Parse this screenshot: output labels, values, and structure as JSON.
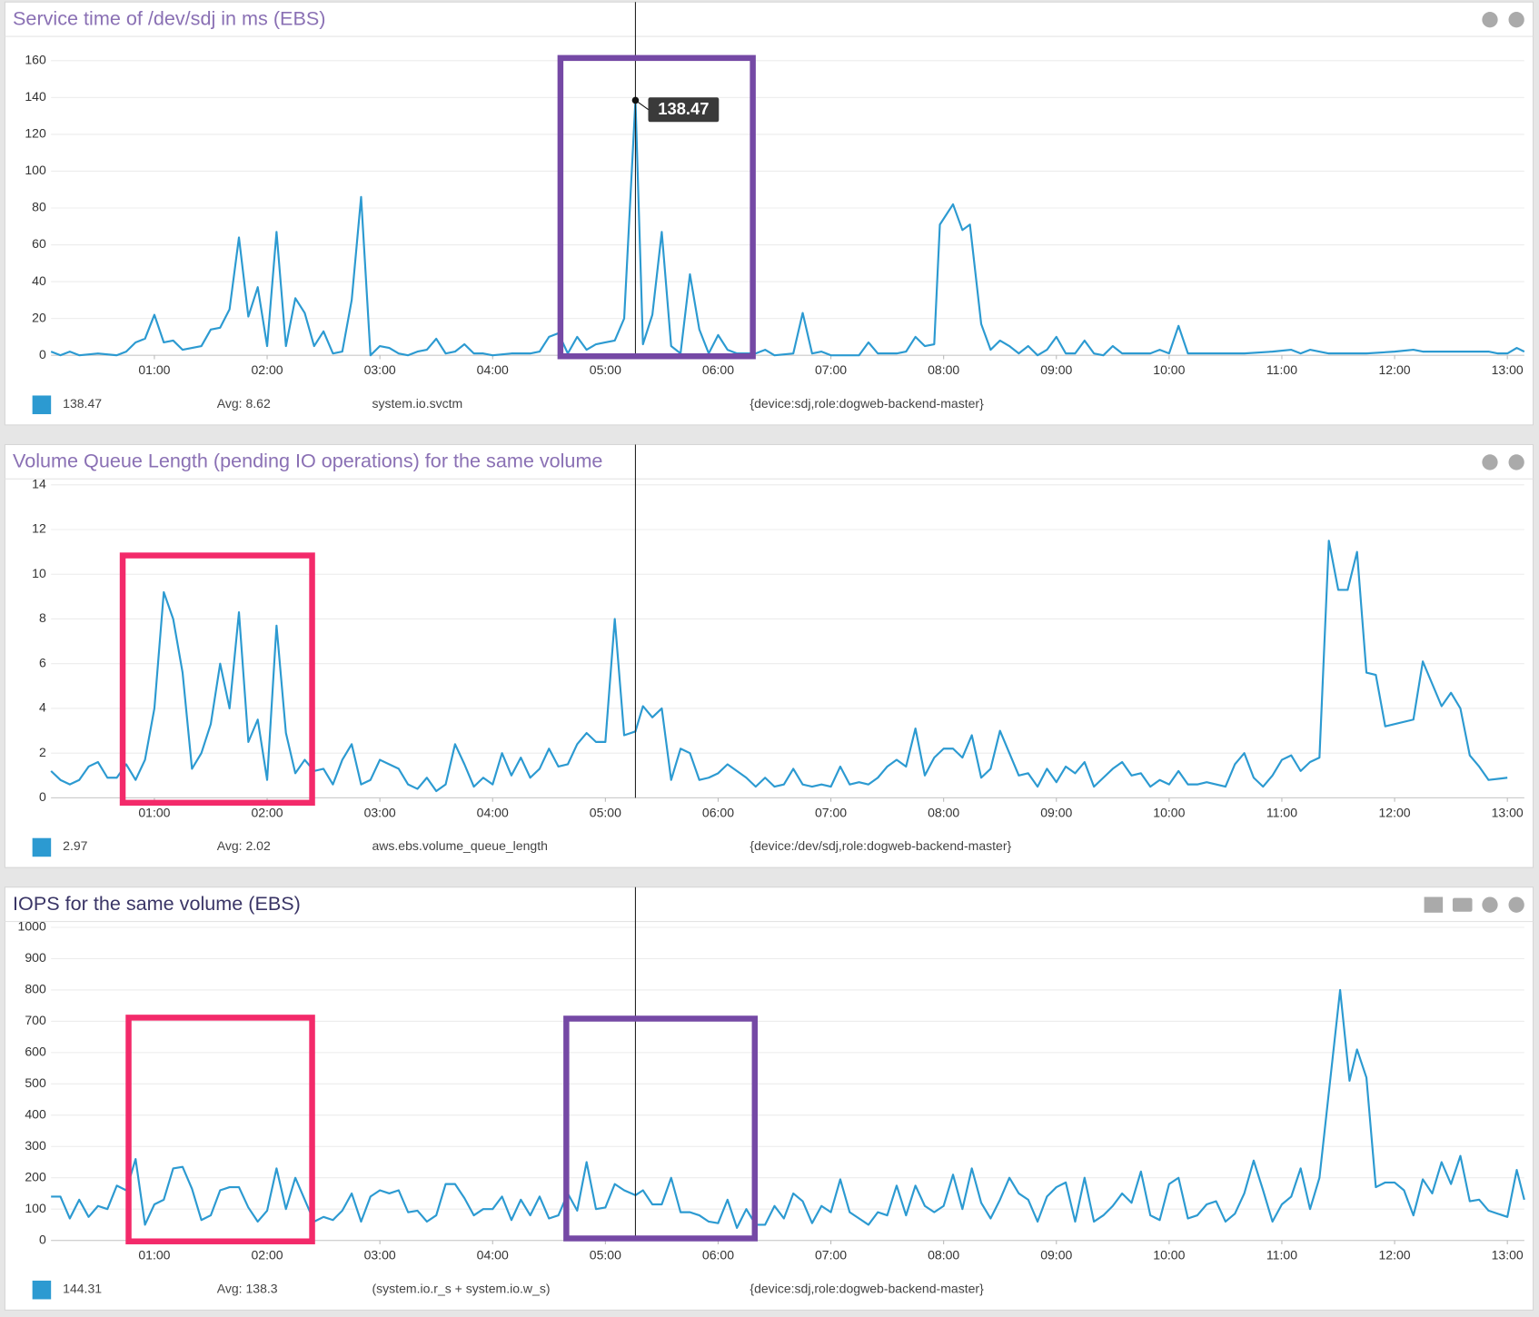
{
  "chart_data": [
    {
      "type": "line",
      "title": "Service time of /dev/sdj in ms (EBS)",
      "x": [
        "00:05",
        "00:10",
        "00:15",
        "00:20",
        "00:30",
        "00:40",
        "00:45",
        "00:50",
        "00:55",
        "01:00",
        "01:05",
        "01:10",
        "01:15",
        "01:20",
        "01:25",
        "01:30",
        "01:35",
        "01:40",
        "01:45",
        "01:50",
        "01:55",
        "02:00",
        "02:05",
        "02:10",
        "02:15",
        "02:20",
        "02:25",
        "02:30",
        "02:35",
        "02:40",
        "02:45",
        "02:50",
        "02:55",
        "03:00",
        "03:05",
        "03:10",
        "03:15",
        "03:20",
        "03:25",
        "03:30",
        "03:35",
        "03:40",
        "03:45",
        "03:50",
        "03:55",
        "04:00",
        "04:10",
        "04:20",
        "04:25",
        "04:30",
        "04:35",
        "04:40",
        "04:45",
        "04:50",
        "04:55",
        "05:00",
        "05:05",
        "05:10",
        "05:16",
        "05:20",
        "05:25",
        "05:30",
        "05:35",
        "05:40",
        "05:45",
        "05:50",
        "05:55",
        "06:00",
        "06:05",
        "06:10",
        "06:20",
        "06:25",
        "06:30",
        "06:40",
        "06:45",
        "06:50",
        "06:55",
        "07:00",
        "07:15",
        "07:20",
        "07:25",
        "07:35",
        "07:40",
        "07:45",
        "07:50",
        "07:55",
        "07:58",
        "08:05",
        "08:10",
        "08:14",
        "08:20",
        "08:25",
        "08:30",
        "08:35",
        "08:40",
        "08:45",
        "08:50",
        "08:55",
        "09:00",
        "09:05",
        "09:10",
        "09:15",
        "09:20",
        "09:25",
        "09:30",
        "09:35",
        "09:45",
        "09:50",
        "09:55",
        "10:00",
        "10:05",
        "10:10",
        "10:20",
        "10:40",
        "10:55",
        "11:05",
        "11:10",
        "11:15",
        "11:25",
        "11:45",
        "12:00",
        "12:10",
        "12:15",
        "12:25",
        "12:40",
        "12:50",
        "12:55",
        "13:00",
        "13:05",
        "13:09"
      ],
      "series": [
        {
          "name": "system.io.svctm",
          "tags": "{device:sdj,role:dogweb-backend-master}",
          "color": "#2c9ad1",
          "values": [
            2,
            0,
            2,
            0,
            1,
            0,
            2,
            7,
            9,
            22,
            7,
            8,
            3,
            4,
            5,
            14,
            15,
            25,
            64,
            21,
            37,
            5,
            67,
            5,
            31,
            23,
            5,
            13,
            1,
            2,
            30,
            86,
            0,
            5,
            4,
            1,
            0,
            2,
            3,
            9,
            1,
            2,
            6,
            1,
            1,
            0,
            1,
            1,
            2,
            10,
            12,
            1,
            10,
            3,
            6,
            7,
            8,
            20,
            138.47,
            6,
            22,
            67,
            5,
            1,
            44,
            14,
            1,
            11,
            3,
            1,
            1,
            3,
            0,
            1,
            23,
            1,
            2,
            0,
            0,
            7,
            1,
            1,
            2,
            10,
            5,
            6,
            71,
            82,
            68,
            71,
            17,
            3,
            8,
            5,
            1,
            5,
            0,
            3,
            10,
            1,
            1,
            8,
            1,
            0,
            5,
            1,
            1,
            1,
            3,
            1,
            16,
            1,
            1,
            1,
            2,
            3,
            1,
            3,
            1,
            1,
            2,
            3,
            2,
            2,
            2,
            2,
            1,
            1,
            4,
            2
          ]
        }
      ],
      "xlim": [
        "00:05",
        "13:09"
      ],
      "xticks": [
        "01:00",
        "02:00",
        "03:00",
        "04:00",
        "05:00",
        "06:00",
        "07:00",
        "08:00",
        "09:00",
        "10:00",
        "11:00",
        "12:00",
        "13:00"
      ],
      "ylim": [
        0,
        170
      ],
      "yticks": [
        0,
        20,
        40,
        60,
        80,
        100,
        120,
        140,
        160
      ],
      "grid": true,
      "legend": {
        "current": 138.47,
        "avg": "Avg: 8.62"
      },
      "tooltip": true
    },
    {
      "type": "line",
      "title": "Volume Queue Length (pending IO operations) for the same volume",
      "x": [
        "00:05",
        "00:10",
        "00:15",
        "00:20",
        "00:25",
        "00:30",
        "00:35",
        "00:40",
        "00:45",
        "00:50",
        "00:55",
        "01:00",
        "01:05",
        "01:10",
        "01:15",
        "01:20",
        "01:25",
        "01:30",
        "01:35",
        "01:40",
        "01:45",
        "01:50",
        "01:55",
        "02:00",
        "02:05",
        "02:10",
        "02:15",
        "02:20",
        "02:25",
        "02:30",
        "02:35",
        "02:40",
        "02:45",
        "02:50",
        "02:55",
        "03:00",
        "03:05",
        "03:10",
        "03:15",
        "03:20",
        "03:25",
        "03:30",
        "03:35",
        "03:40",
        "03:45",
        "03:50",
        "03:55",
        "04:00",
        "04:05",
        "04:10",
        "04:15",
        "04:20",
        "04:25",
        "04:30",
        "04:35",
        "04:40",
        "04:45",
        "04:50",
        "04:55",
        "05:00",
        "05:05",
        "05:10",
        "05:16",
        "05:20",
        "05:25",
        "05:30",
        "05:35",
        "05:40",
        "05:45",
        "05:50",
        "05:55",
        "06:00",
        "06:05",
        "06:10",
        "06:15",
        "06:20",
        "06:25",
        "06:30",
        "06:35",
        "06:40",
        "06:45",
        "06:50",
        "06:55",
        "07:00",
        "07:05",
        "07:10",
        "07:15",
        "07:20",
        "07:25",
        "07:30",
        "07:35",
        "07:40",
        "07:45",
        "07:50",
        "07:55",
        "08:00",
        "08:05",
        "08:10",
        "08:15",
        "08:20",
        "08:25",
        "08:30",
        "08:35",
        "08:40",
        "08:45",
        "08:50",
        "08:55",
        "09:00",
        "09:05",
        "09:10",
        "09:15",
        "09:20",
        "09:25",
        "09:30",
        "09:35",
        "09:40",
        "09:45",
        "09:50",
        "09:55",
        "10:00",
        "10:05",
        "10:10",
        "10:15",
        "10:20",
        "10:30",
        "10:35",
        "10:40",
        "10:45",
        "10:50",
        "10:55",
        "11:00",
        "11:05",
        "11:10",
        "11:15",
        "11:20",
        "11:25",
        "11:30",
        "11:35",
        "11:40",
        "11:45",
        "11:50",
        "11:55",
        "12:10",
        "12:15",
        "12:20",
        "12:25",
        "12:30",
        "12:35",
        "12:40",
        "12:45",
        "12:50",
        "13:00"
      ],
      "series": [
        {
          "name": "aws.ebs.volume_queue_length",
          "tags": "{device:/dev/sdj,role:dogweb-backend-master}",
          "color": "#2c9ad1",
          "values": [
            1.2,
            0.8,
            0.6,
            0.8,
            1.4,
            1.6,
            0.9,
            0.9,
            1.5,
            0.8,
            1.7,
            4.0,
            9.2,
            8.0,
            5.6,
            1.3,
            2.0,
            3.3,
            6.0,
            4.0,
            8.3,
            2.5,
            3.5,
            0.8,
            7.7,
            2.9,
            1.1,
            1.7,
            1.2,
            1.3,
            0.6,
            1.7,
            2.4,
            0.6,
            0.8,
            1.7,
            1.5,
            1.3,
            0.6,
            0.4,
            0.9,
            0.3,
            0.6,
            2.4,
            1.5,
            0.5,
            0.9,
            0.6,
            2.0,
            1.0,
            1.8,
            0.9,
            1.3,
            2.2,
            1.4,
            1.5,
            2.4,
            2.9,
            2.5,
            2.5,
            8.0,
            2.8,
            2.97,
            4.1,
            3.6,
            4.0,
            0.8,
            2.2,
            2.0,
            0.8,
            0.9,
            1.1,
            1.5,
            1.2,
            0.9,
            0.5,
            0.9,
            0.5,
            0.6,
            1.3,
            0.6,
            0.5,
            0.6,
            0.5,
            1.4,
            0.6,
            0.7,
            0.6,
            0.9,
            1.4,
            1.7,
            1.4,
            3.1,
            1.0,
            1.8,
            2.2,
            2.2,
            1.8,
            2.8,
            0.9,
            1.3,
            3.0,
            2.0,
            1.0,
            1.1,
            0.5,
            1.3,
            0.7,
            1.4,
            1.1,
            1.6,
            0.5,
            0.9,
            1.3,
            1.6,
            1.0,
            1.1,
            0.5,
            0.8,
            0.6,
            1.2,
            0.6,
            0.6,
            0.7,
            0.5,
            1.5,
            2.0,
            0.9,
            0.5,
            1.0,
            1.7,
            1.9,
            1.2,
            1.6,
            1.8,
            11.5,
            9.3,
            9.3,
            11.0,
            5.6,
            5.5,
            3.2,
            3.5,
            6.1,
            5.1,
            4.1,
            4.7,
            4.0,
            1.9,
            1.4,
            0.8,
            0.9
          ]
        }
      ],
      "xlim": [
        "00:05",
        "13:09"
      ],
      "xticks": [
        "01:00",
        "02:00",
        "03:00",
        "04:00",
        "05:00",
        "06:00",
        "07:00",
        "08:00",
        "09:00",
        "10:00",
        "11:00",
        "12:00",
        "13:00"
      ],
      "ylim": [
        0,
        14
      ],
      "yticks": [
        0,
        2,
        4,
        6,
        8,
        10,
        12,
        14
      ],
      "grid": true,
      "legend": {
        "current": 2.97,
        "avg": "Avg: 2.02"
      },
      "tooltip": false
    },
    {
      "type": "line",
      "title": "IOPS for the same volume (EBS)",
      "x": [
        "00:05",
        "00:10",
        "00:15",
        "00:20",
        "00:25",
        "00:30",
        "00:35",
        "00:40",
        "00:45",
        "00:50",
        "00:55",
        "01:00",
        "01:05",
        "01:10",
        "01:15",
        "01:20",
        "01:25",
        "01:30",
        "01:35",
        "01:40",
        "01:45",
        "01:50",
        "01:55",
        "02:00",
        "02:05",
        "02:10",
        "02:15",
        "02:20",
        "02:25",
        "02:30",
        "02:35",
        "02:40",
        "02:45",
        "02:50",
        "02:55",
        "03:00",
        "03:05",
        "03:10",
        "03:15",
        "03:20",
        "03:25",
        "03:30",
        "03:35",
        "03:40",
        "03:45",
        "03:50",
        "03:55",
        "04:00",
        "04:05",
        "04:10",
        "04:15",
        "04:20",
        "04:25",
        "04:30",
        "04:35",
        "04:40",
        "04:45",
        "04:50",
        "04:55",
        "05:00",
        "05:05",
        "05:10",
        "05:16",
        "05:20",
        "05:25",
        "05:30",
        "05:35",
        "05:40",
        "05:45",
        "05:50",
        "05:55",
        "06:00",
        "06:05",
        "06:10",
        "06:15",
        "06:20",
        "06:25",
        "06:30",
        "06:35",
        "06:40",
        "06:45",
        "06:50",
        "06:55",
        "07:00",
        "07:05",
        "07:10",
        "07:15",
        "07:20",
        "07:25",
        "07:30",
        "07:35",
        "07:40",
        "07:45",
        "07:50",
        "07:55",
        "08:00",
        "08:05",
        "08:10",
        "08:15",
        "08:20",
        "08:25",
        "08:30",
        "08:35",
        "08:40",
        "08:45",
        "08:50",
        "08:55",
        "09:00",
        "09:05",
        "09:10",
        "09:15",
        "09:20",
        "09:25",
        "09:30",
        "09:35",
        "09:40",
        "09:45",
        "09:50",
        "09:55",
        "10:00",
        "10:05",
        "10:10",
        "10:15",
        "10:20",
        "10:25",
        "10:30",
        "10:35",
        "10:40",
        "10:45",
        "10:50",
        "10:55",
        "11:00",
        "11:05",
        "11:10",
        "11:15",
        "11:20",
        "11:31",
        "11:36",
        "11:40",
        "11:45",
        "11:50",
        "11:55",
        "12:00",
        "12:05",
        "12:10",
        "12:15",
        "12:20",
        "12:25",
        "12:30",
        "12:35",
        "12:40",
        "12:45",
        "12:50",
        "12:55",
        "13:00",
        "13:05",
        "13:09"
      ],
      "series": [
        {
          "name": "(system.io.r_s + system.io.w_s)",
          "tags": "{device:sdj,role:dogweb-backend-master}",
          "color": "#2c9ad1",
          "values": [
            140,
            140,
            70,
            130,
            75,
            110,
            100,
            175,
            160,
            260,
            50,
            115,
            130,
            230,
            235,
            165,
            65,
            80,
            160,
            170,
            170,
            105,
            60,
            95,
            230,
            100,
            200,
            130,
            60,
            75,
            65,
            95,
            150,
            60,
            140,
            160,
            150,
            160,
            90,
            95,
            60,
            80,
            180,
            180,
            135,
            80,
            100,
            100,
            140,
            65,
            130,
            80,
            140,
            70,
            80,
            150,
            95,
            250,
            100,
            105,
            180,
            160,
            144.31,
            160,
            115,
            115,
            200,
            90,
            90,
            80,
            60,
            55,
            130,
            40,
            100,
            50,
            50,
            110,
            70,
            150,
            125,
            55,
            110,
            90,
            195,
            90,
            70,
            50,
            90,
            80,
            175,
            80,
            175,
            110,
            90,
            110,
            210,
            100,
            230,
            120,
            70,
            130,
            200,
            150,
            130,
            60,
            140,
            170,
            185,
            60,
            200,
            60,
            80,
            110,
            150,
            120,
            220,
            80,
            65,
            180,
            200,
            70,
            80,
            115,
            125,
            60,
            85,
            150,
            255,
            160,
            60,
            115,
            140,
            230,
            100,
            200,
            800,
            510,
            610,
            520,
            170,
            185,
            185,
            160,
            80,
            195,
            150,
            250,
            180,
            270,
            125,
            130,
            95,
            85,
            75,
            225,
            130
          ]
        }
      ],
      "xlim": [
        "00:05",
        "13:09"
      ],
      "xticks": [
        "01:00",
        "02:00",
        "03:00",
        "04:00",
        "05:00",
        "06:00",
        "07:00",
        "08:00",
        "09:00",
        "10:00",
        "11:00",
        "12:00",
        "13:00"
      ],
      "ylim": [
        0,
        1000
      ],
      "yticks": [
        0,
        100,
        200,
        300,
        400,
        500,
        600,
        700,
        800,
        900,
        1000
      ],
      "grid": true,
      "legend": {
        "current": 144.31,
        "avg": "Avg: 138.3"
      },
      "tooltip": false
    }
  ]
}
